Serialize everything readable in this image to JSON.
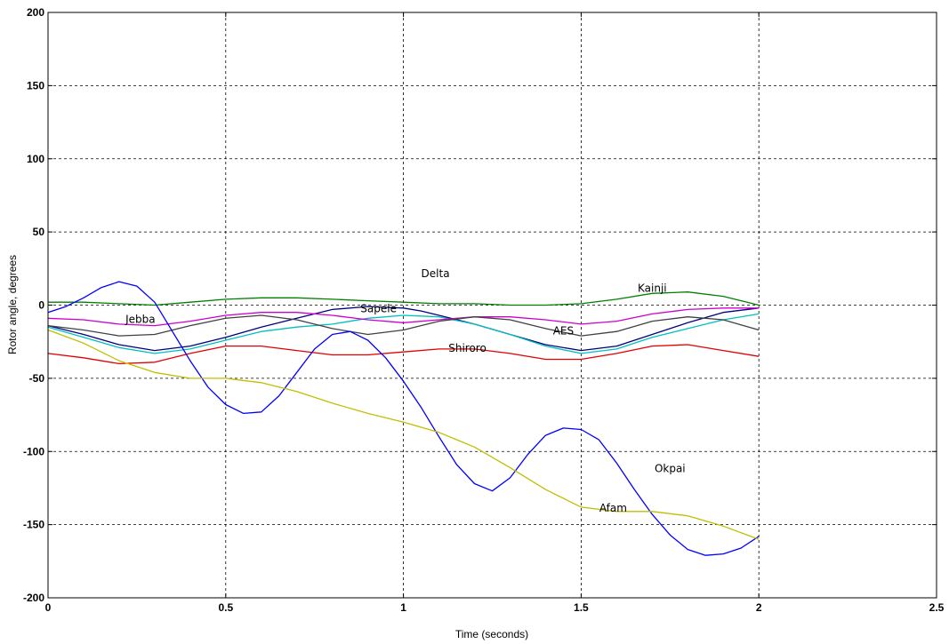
{
  "chart_data": {
    "type": "line",
    "title": "",
    "xlabel": "Time (seconds)",
    "ylabel": "Rotor angle, degrees",
    "xlim": [
      0,
      2.5
    ],
    "ylim": [
      -200,
      200
    ],
    "xticks": [
      0,
      0.5,
      1,
      1.5,
      2,
      2.5
    ],
    "xtick_labels": [
      "0",
      "0.5",
      "1",
      "1.5",
      "2",
      "2.5"
    ],
    "yticks": [
      -200,
      -150,
      -100,
      -50,
      0,
      50,
      100,
      150,
      200
    ],
    "ytick_labels": [
      "-200",
      "-150",
      "-100",
      "-50",
      "0",
      "50",
      "100",
      "150",
      "200"
    ],
    "grid": true,
    "series": [
      {
        "name": "Kainji",
        "color": "#008000",
        "x": [
          0,
          0.1,
          0.2,
          0.3,
          0.4,
          0.5,
          0.6,
          0.7,
          0.8,
          0.9,
          1.0,
          1.1,
          1.2,
          1.3,
          1.4,
          1.5,
          1.6,
          1.7,
          1.8,
          1.9,
          2.0
        ],
        "y": [
          2,
          2,
          1,
          0,
          2,
          4,
          5,
          5,
          4,
          3,
          2,
          1,
          1,
          0,
          0,
          1,
          4,
          8,
          9,
          6,
          0
        ]
      },
      {
        "name": "Delta",
        "color": "#000080",
        "x": [
          0,
          0.1,
          0.2,
          0.3,
          0.4,
          0.5,
          0.6,
          0.7,
          0.8,
          0.9,
          1.0,
          1.05,
          1.1,
          1.2,
          1.3,
          1.4,
          1.5,
          1.6,
          1.7,
          1.8,
          1.9,
          2.0
        ],
        "y": [
          -14,
          -20,
          -27,
          -31,
          -28,
          -22,
          -15,
          -9,
          -3,
          -1,
          -2,
          -4,
          -7,
          -13,
          -20,
          -27,
          -31,
          -28,
          -20,
          -12,
          -5,
          -2
        ]
      },
      {
        "name": "Sapele",
        "color": "#00BFBF",
        "x": [
          0,
          0.1,
          0.2,
          0.3,
          0.4,
          0.5,
          0.6,
          0.7,
          0.8,
          0.9,
          1.0,
          1.1,
          1.2,
          1.3,
          1.4,
          1.5,
          1.6,
          1.7,
          1.8,
          1.9,
          2.0
        ],
        "y": [
          -15,
          -22,
          -29,
          -33,
          -30,
          -24,
          -18,
          -15,
          -13,
          -9,
          -7,
          -8,
          -13,
          -20,
          -28,
          -33,
          -30,
          -22,
          -16,
          -10,
          -6
        ]
      },
      {
        "name": "Jebba",
        "color": "#CC00CC",
        "x": [
          0,
          0.1,
          0.2,
          0.3,
          0.4,
          0.5,
          0.6,
          0.7,
          0.8,
          0.9,
          1.0,
          1.1,
          1.2,
          1.3,
          1.4,
          1.5,
          1.6,
          1.7,
          1.8,
          1.9,
          2.0
        ],
        "y": [
          -9,
          -10,
          -13,
          -14,
          -11,
          -7,
          -5,
          -5,
          -7,
          -10,
          -12,
          -10,
          -8,
          -8,
          -10,
          -13,
          -11,
          -6,
          -3,
          -2,
          -2
        ]
      },
      {
        "name": "AES",
        "color": "#404040",
        "x": [
          0,
          0.1,
          0.2,
          0.3,
          0.4,
          0.5,
          0.6,
          0.7,
          0.8,
          0.9,
          1.0,
          1.1,
          1.2,
          1.3,
          1.4,
          1.5,
          1.6,
          1.7,
          1.8,
          1.9,
          2.0
        ],
        "y": [
          -14,
          -17,
          -21,
          -20,
          -14,
          -9,
          -7,
          -10,
          -16,
          -20,
          -17,
          -11,
          -8,
          -10,
          -16,
          -21,
          -18,
          -11,
          -8,
          -10,
          -17
        ]
      },
      {
        "name": "Shiroro",
        "color": "#E00000",
        "x": [
          0,
          0.1,
          0.2,
          0.3,
          0.4,
          0.5,
          0.6,
          0.7,
          0.8,
          0.9,
          1.0,
          1.1,
          1.2,
          1.3,
          1.4,
          1.5,
          1.6,
          1.7,
          1.8,
          1.9,
          2.0
        ],
        "y": [
          -33,
          -36,
          -40,
          -39,
          -33,
          -28,
          -28,
          -31,
          -34,
          -34,
          -32,
          -30,
          -30,
          -33,
          -37,
          -37,
          -33,
          -28,
          -27,
          -31,
          -35
        ]
      },
      {
        "name": "Okpai",
        "color": "#0000FF",
        "x": [
          0,
          0.05,
          0.1,
          0.15,
          0.2,
          0.25,
          0.3,
          0.35,
          0.4,
          0.45,
          0.5,
          0.55,
          0.6,
          0.65,
          0.7,
          0.75,
          0.8,
          0.85,
          0.9,
          0.95,
          1.0,
          1.05,
          1.1,
          1.15,
          1.2,
          1.25,
          1.3,
          1.35,
          1.4,
          1.45,
          1.5,
          1.55,
          1.6,
          1.65,
          1.7,
          1.75,
          1.8,
          1.85,
          1.9,
          1.95,
          2.0
        ],
        "y": [
          -5,
          -1,
          5,
          12,
          16,
          13,
          2,
          -18,
          -38,
          -56,
          -68,
          -74,
          -73,
          -62,
          -46,
          -30,
          -20,
          -18,
          -24,
          -36,
          -52,
          -70,
          -90,
          -109,
          -122,
          -127,
          -118,
          -102,
          -89,
          -84,
          -85,
          -92,
          -108,
          -126,
          -143,
          -157,
          -167,
          -171,
          -170,
          -166,
          -158
        ]
      },
      {
        "name": "Afam",
        "color": "#BFBF00",
        "x": [
          0,
          0.1,
          0.2,
          0.3,
          0.4,
          0.5,
          0.6,
          0.7,
          0.8,
          0.9,
          1.0,
          1.1,
          1.2,
          1.3,
          1.4,
          1.5,
          1.6,
          1.7,
          1.8,
          1.9,
          2.0
        ],
        "y": [
          -17,
          -26,
          -38,
          -46,
          -50,
          -50,
          -53,
          -59,
          -67,
          -74,
          -80,
          -87,
          -97,
          -111,
          -126,
          -138,
          -141,
          -141,
          -144,
          -151,
          -160
        ]
      }
    ],
    "annotations": [
      {
        "text": "Delta",
        "x": 1.09,
        "y": 19
      },
      {
        "text": "Kainji",
        "x": 1.7,
        "y": 9
      },
      {
        "text": "Sapele",
        "x": 0.93,
        "y": -5
      },
      {
        "text": "Jebba",
        "x": 0.26,
        "y": -12
      },
      {
        "text": "AES",
        "x": 1.45,
        "y": -20
      },
      {
        "text": "Shiroro",
        "x": 1.18,
        "y": -32
      },
      {
        "text": "Okpai",
        "x": 1.75,
        "y": -114
      },
      {
        "text": "Afam",
        "x": 1.59,
        "y": -141
      }
    ]
  }
}
